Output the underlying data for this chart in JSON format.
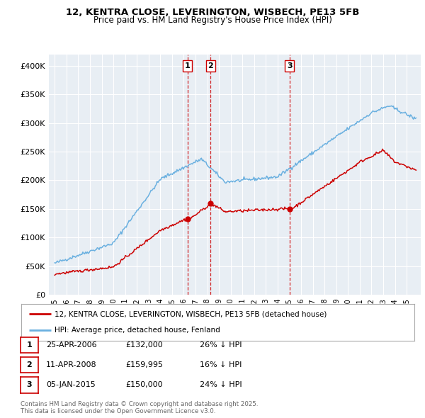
{
  "title_line1": "12, KENTRA CLOSE, LEVERINGTON, WISBECH, PE13 5FB",
  "title_line2": "Price paid vs. HM Land Registry's House Price Index (HPI)",
  "ylabel_ticks": [
    "£0",
    "£50K",
    "£100K",
    "£150K",
    "£200K",
    "£250K",
    "£300K",
    "£350K",
    "£400K"
  ],
  "ytick_vals": [
    0,
    50000,
    100000,
    150000,
    200000,
    250000,
    300000,
    350000,
    400000
  ],
  "ylim": [
    0,
    420000
  ],
  "xlim_start": 1994.5,
  "xlim_end": 2026.2,
  "hpi_color": "#6ab0e0",
  "price_color": "#cc0000",
  "vline_color": "#cc0000",
  "background_color": "#e8eef4",
  "grid_color": "#ffffff",
  "sales": [
    {
      "date_num": 2006.32,
      "price": 132000,
      "label": "1",
      "date_str": "25-APR-2006",
      "pct": "26% ↓ HPI"
    },
    {
      "date_num": 2008.28,
      "price": 159995,
      "label": "2",
      "date_str": "11-APR-2008",
      "pct": "16% ↓ HPI"
    },
    {
      "date_num": 2015.02,
      "price": 150000,
      "label": "3",
      "date_str": "05-JAN-2015",
      "pct": "24% ↓ HPI"
    }
  ],
  "legend_line1": "12, KENTRA CLOSE, LEVERINGTON, WISBECH, PE13 5FB (detached house)",
  "legend_line2": "HPI: Average price, detached house, Fenland",
  "footnote": "Contains HM Land Registry data © Crown copyright and database right 2025.\nThis data is licensed under the Open Government Licence v3.0.",
  "table_rows": [
    [
      "1",
      "25-APR-2006",
      "£132,000",
      "26% ↓ HPI"
    ],
    [
      "2",
      "11-APR-2008",
      "£159,995",
      "16% ↓ HPI"
    ],
    [
      "3",
      "05-JAN-2015",
      "£150,000",
      "24% ↓ HPI"
    ]
  ]
}
